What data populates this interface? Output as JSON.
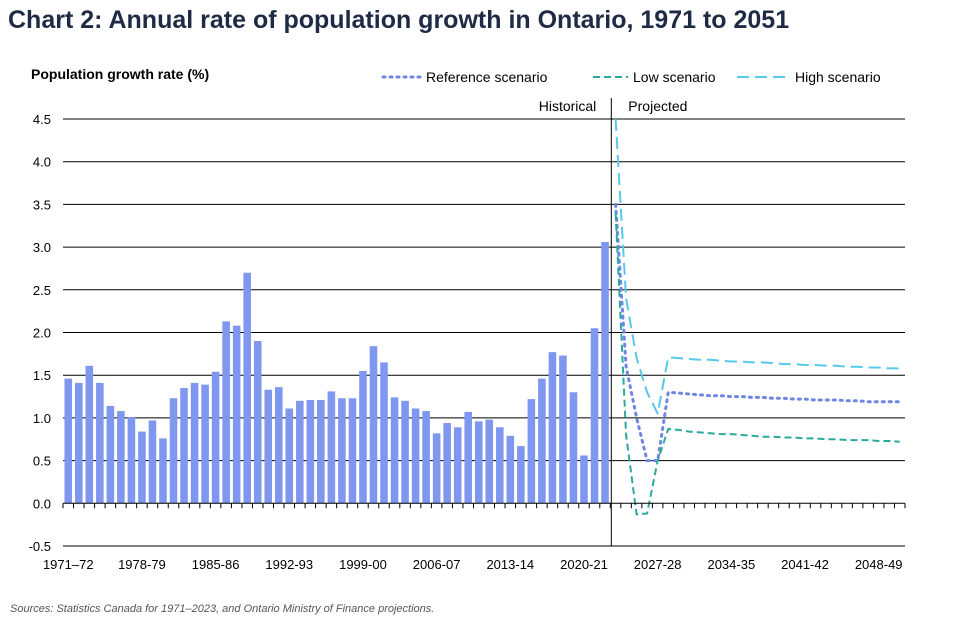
{
  "title": "Chart 2: Annual rate of population growth in Ontario, 1971 to 2051",
  "source": "Sources: Statistics Canada for 1971–2023, and Ontario Ministry of Finance projections.",
  "colors": {
    "bar": "#7f97ee",
    "reference": "#6f86e6",
    "low": "#2aa99d",
    "high": "#57c9ea",
    "grid": "#000000",
    "text": "#000000"
  },
  "chart_data": {
    "type": "bar+line",
    "ylabel": "Population growth rate (%)",
    "ylim": [
      -0.5,
      4.5
    ],
    "yticks": [
      "4.5",
      "4.0",
      "3.5",
      "3.0",
      "2.5",
      "2.0",
      "1.5",
      "1.0",
      "0.5",
      "0.0",
      "-0.5"
    ],
    "ytick_values": [
      4.5,
      4.0,
      3.5,
      3.0,
      2.5,
      2.0,
      1.5,
      1.0,
      0.5,
      0.0,
      -0.5
    ],
    "xtick_labels": [
      "1971–72",
      "1978-79",
      "1985-86",
      "1992-93",
      "1999-00",
      "2006-07",
      "2013-14",
      "2020-21",
      "2027-28",
      "2034-35",
      "2041-42",
      "2048-49"
    ],
    "xtick_indices": [
      0,
      7,
      14,
      21,
      28,
      35,
      42,
      49,
      56,
      63,
      70,
      77
    ],
    "n_periods": 80,
    "annotations": {
      "historical": "Historical",
      "projected": "Projected"
    },
    "historical_values": [
      1.46,
      1.41,
      1.61,
      1.41,
      1.14,
      1.08,
      1.01,
      0.84,
      0.97,
      0.76,
      1.23,
      1.35,
      1.41,
      1.39,
      1.54,
      2.13,
      2.08,
      2.7,
      1.9,
      1.33,
      1.36,
      1.11,
      1.2,
      1.21,
      1.21,
      1.31,
      1.23,
      1.23,
      1.55,
      1.84,
      1.65,
      1.24,
      1.2,
      1.11,
      1.08,
      0.82,
      0.94,
      0.89,
      1.07,
      0.96,
      0.98,
      0.89,
      0.79,
      0.67,
      1.22,
      1.46,
      1.77,
      1.73,
      1.3,
      0.56,
      2.05,
      3.06
    ],
    "projected_start_index": 52,
    "series": [
      {
        "name": "Reference scenario",
        "key": "reference",
        "values": [
          3.5,
          1.6,
          1.0,
          0.5,
          0.5,
          1.3,
          1.29,
          1.28,
          1.27,
          1.26,
          1.26,
          1.25,
          1.25,
          1.24,
          1.24,
          1.23,
          1.23,
          1.22,
          1.22,
          1.21,
          1.21,
          1.21,
          1.2,
          1.2,
          1.19,
          1.19,
          1.19,
          1.19
        ]
      },
      {
        "name": "Low scenario",
        "key": "low",
        "values": [
          3.4,
          0.8,
          -0.13,
          -0.12,
          0.5,
          0.87,
          0.86,
          0.84,
          0.83,
          0.82,
          0.81,
          0.81,
          0.8,
          0.79,
          0.78,
          0.78,
          0.77,
          0.77,
          0.76,
          0.76,
          0.75,
          0.75,
          0.74,
          0.74,
          0.74,
          0.73,
          0.73,
          0.72
        ]
      },
      {
        "name": "High scenario",
        "key": "high",
        "values": [
          4.5,
          2.4,
          1.7,
          1.3,
          1.05,
          1.71,
          1.7,
          1.69,
          1.68,
          1.68,
          1.67,
          1.66,
          1.66,
          1.65,
          1.65,
          1.64,
          1.63,
          1.63,
          1.62,
          1.62,
          1.61,
          1.61,
          1.6,
          1.6,
          1.59,
          1.59,
          1.58,
          1.58
        ]
      }
    ]
  }
}
